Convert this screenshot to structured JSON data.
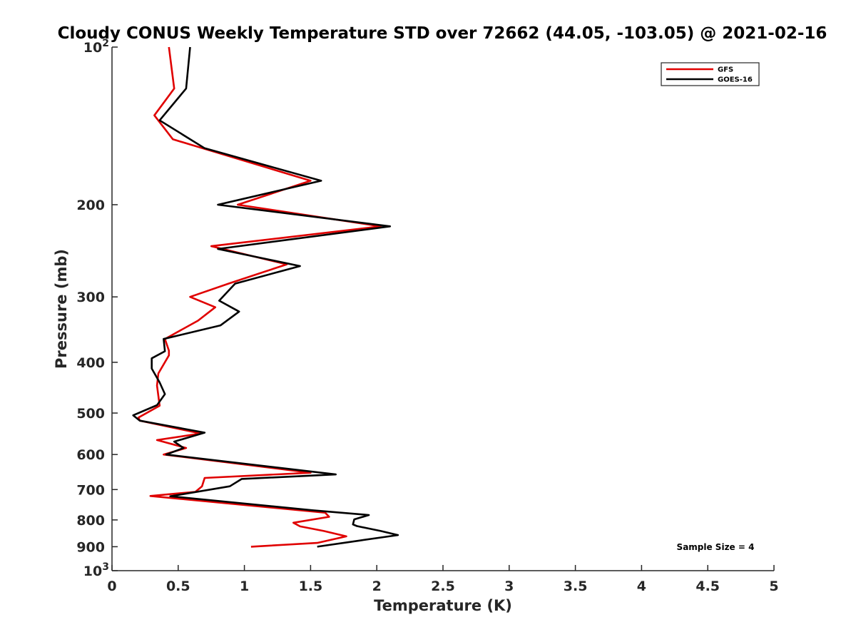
{
  "chart_data": {
    "type": "line",
    "title": "Cloudy CONUS Weekly Temperature STD over 72662 (44.05, -103.05) @ 2021-02-16",
    "xlabel": "Temperature (K)",
    "ylabel": "Pressure (mb)",
    "xlim": [
      0,
      5
    ],
    "ylim": [
      100,
      1000
    ],
    "y_scale": "log",
    "y_reversed": true,
    "x_ticks": [
      {
        "value": 0,
        "label": "0"
      },
      {
        "value": 0.5,
        "label": "0.5"
      },
      {
        "value": 1,
        "label": "1"
      },
      {
        "value": 1.5,
        "label": "1.5"
      },
      {
        "value": 2,
        "label": "2"
      },
      {
        "value": 2.5,
        "label": "2.5"
      },
      {
        "value": 3,
        "label": "3"
      },
      {
        "value": 3.5,
        "label": "3.5"
      },
      {
        "value": 4,
        "label": "4"
      },
      {
        "value": 4.5,
        "label": "4.5"
      },
      {
        "value": 5,
        "label": "5"
      }
    ],
    "y_ticks": [
      {
        "value": 100,
        "base": "10",
        "exp": "2"
      },
      {
        "value": 200,
        "base": "200",
        "exp": ""
      },
      {
        "value": 300,
        "base": "300",
        "exp": ""
      },
      {
        "value": 400,
        "base": "400",
        "exp": ""
      },
      {
        "value": 500,
        "base": "500",
        "exp": ""
      },
      {
        "value": 600,
        "base": "600",
        "exp": ""
      },
      {
        "value": 700,
        "base": "700",
        "exp": ""
      },
      {
        "value": 800,
        "base": "800",
        "exp": ""
      },
      {
        "value": 900,
        "base": "900",
        "exp": ""
      },
      {
        "value": 1000,
        "base": "10",
        "exp": "3"
      }
    ],
    "grid": false,
    "legend_position": "top-right",
    "annotation": "Sample Size = 4",
    "series": [
      {
        "name": "GFS",
        "color": "#e00000",
        "points": [
          [
            0.43,
            100
          ],
          [
            0.47,
            120
          ],
          [
            0.32,
            135
          ],
          [
            0.46,
            150
          ],
          [
            1.5,
            180
          ],
          [
            0.95,
            200
          ],
          [
            2.03,
            220
          ],
          [
            0.75,
            240
          ],
          [
            1.32,
            260
          ],
          [
            0.88,
            283
          ],
          [
            0.59,
            300
          ],
          [
            0.78,
            314
          ],
          [
            0.65,
            333
          ],
          [
            0.4,
            361
          ],
          [
            0.43,
            380
          ],
          [
            0.43,
            388
          ],
          [
            0.35,
            420
          ],
          [
            0.34,
            443
          ],
          [
            0.36,
            484
          ],
          [
            0.2,
            510
          ],
          [
            0.21,
            517
          ],
          [
            0.67,
            547
          ],
          [
            0.34,
            563
          ],
          [
            0.56,
            583
          ],
          [
            0.39,
            600
          ],
          [
            1.5,
            650
          ],
          [
            0.7,
            665
          ],
          [
            0.68,
            690
          ],
          [
            0.63,
            707
          ],
          [
            0.29,
            720
          ],
          [
            1.61,
            775
          ],
          [
            1.64,
            789
          ],
          [
            1.37,
            810
          ],
          [
            1.42,
            823
          ],
          [
            1.6,
            840
          ],
          [
            1.77,
            860
          ],
          [
            1.55,
            885
          ],
          [
            1.05,
            900
          ]
        ]
      },
      {
        "name": "GOES-16",
        "color": "#000000",
        "points": [
          [
            0.59,
            100
          ],
          [
            0.56,
            120
          ],
          [
            0.36,
            138
          ],
          [
            0.7,
            156
          ],
          [
            1.58,
            180
          ],
          [
            0.8,
            200
          ],
          [
            2.1,
            220
          ],
          [
            0.8,
            243
          ],
          [
            1.42,
            262
          ],
          [
            0.93,
            283
          ],
          [
            0.81,
            305
          ],
          [
            0.96,
            320
          ],
          [
            0.82,
            340
          ],
          [
            0.39,
            361
          ],
          [
            0.4,
            381
          ],
          [
            0.3,
            393
          ],
          [
            0.3,
            411
          ],
          [
            0.36,
            437
          ],
          [
            0.4,
            460
          ],
          [
            0.34,
            483
          ],
          [
            0.16,
            505
          ],
          [
            0.21,
            517
          ],
          [
            0.7,
            545
          ],
          [
            0.47,
            567
          ],
          [
            0.54,
            583
          ],
          [
            0.41,
            600
          ],
          [
            1.69,
            655
          ],
          [
            0.98,
            668
          ],
          [
            0.89,
            690
          ],
          [
            0.44,
            721
          ],
          [
            1.52,
            767
          ],
          [
            1.94,
            783
          ],
          [
            1.83,
            798
          ],
          [
            1.82,
            816
          ],
          [
            1.85,
            822
          ],
          [
            2.03,
            840
          ],
          [
            2.16,
            855
          ],
          [
            1.87,
            876
          ],
          [
            1.55,
            900
          ]
        ]
      }
    ]
  }
}
